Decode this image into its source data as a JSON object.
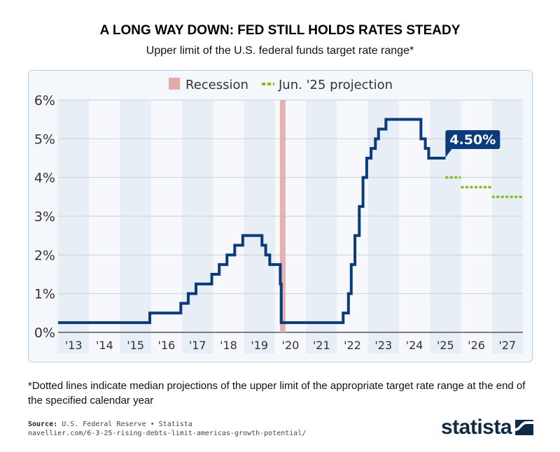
{
  "title": "A LONG WAY DOWN: FED STILL HOLDS RATES STEADY",
  "subtitle": "Upper limit of the U.S. federal funds target rate range*",
  "footnote": "*Dotted lines indicate median projections of the upper limit of the appropriate target rate range at the end of the specified calendar year",
  "source_label": "Source:",
  "source_text": "U.S. Federal Reserve • Statista",
  "source_url": "navellier.com/6-3-25-rising-debts-limit-americas-growth-potential/",
  "logo": "statista",
  "chart_data": {
    "type": "line",
    "step": true,
    "ylim": [
      0,
      6
    ],
    "xlim": [
      2013,
      2028
    ],
    "yticks": [
      "0%",
      "1%",
      "2%",
      "3%",
      "4%",
      "5%",
      "6%"
    ],
    "xticks": [
      "'13",
      "'14",
      "'15",
      "'16",
      "'17",
      "'18",
      "'19",
      "'20",
      "'21",
      "'22",
      "'23",
      "'24",
      "'25",
      "'26",
      "'27"
    ],
    "grid": true,
    "legend_position": "top-center",
    "legend": [
      {
        "label": "Recession",
        "color": "#e3aaa8"
      },
      {
        "label": "Jun. '25 projection",
        "color": "#7cc12a"
      }
    ],
    "series": [
      {
        "color": "#0b3b7a",
        "points": [
          [
            2013.0,
            0.25
          ],
          [
            2015.96,
            0.5
          ],
          [
            2016.96,
            0.75
          ],
          [
            2017.2,
            1.0
          ],
          [
            2017.45,
            1.25
          ],
          [
            2017.96,
            1.5
          ],
          [
            2018.2,
            1.75
          ],
          [
            2018.45,
            2.0
          ],
          [
            2018.7,
            2.25
          ],
          [
            2018.96,
            2.5
          ],
          [
            2019.58,
            2.25
          ],
          [
            2019.7,
            2.0
          ],
          [
            2019.83,
            1.75
          ],
          [
            2020.17,
            1.25
          ],
          [
            2020.2,
            0.25
          ],
          [
            2022.2,
            0.5
          ],
          [
            2022.37,
            1.0
          ],
          [
            2022.46,
            1.75
          ],
          [
            2022.58,
            2.5
          ],
          [
            2022.72,
            3.25
          ],
          [
            2022.84,
            4.0
          ],
          [
            2022.96,
            4.5
          ],
          [
            2023.1,
            4.75
          ],
          [
            2023.24,
            5.0
          ],
          [
            2023.34,
            5.25
          ],
          [
            2023.58,
            5.5
          ],
          [
            2024.71,
            5.0
          ],
          [
            2024.85,
            4.75
          ],
          [
            2024.96,
            4.5
          ],
          [
            2025.5,
            4.5
          ]
        ]
      }
    ],
    "projection": [
      {
        "from": 2025.5,
        "to": 2026.0,
        "value": 4.0
      },
      {
        "from": 2026.0,
        "to": 2027.0,
        "value": 3.75
      },
      {
        "from": 2027.0,
        "to": 2028.0,
        "value": 3.5
      }
    ],
    "recession": [
      2020.16,
      2020.34
    ],
    "annotation": "4.50%"
  }
}
